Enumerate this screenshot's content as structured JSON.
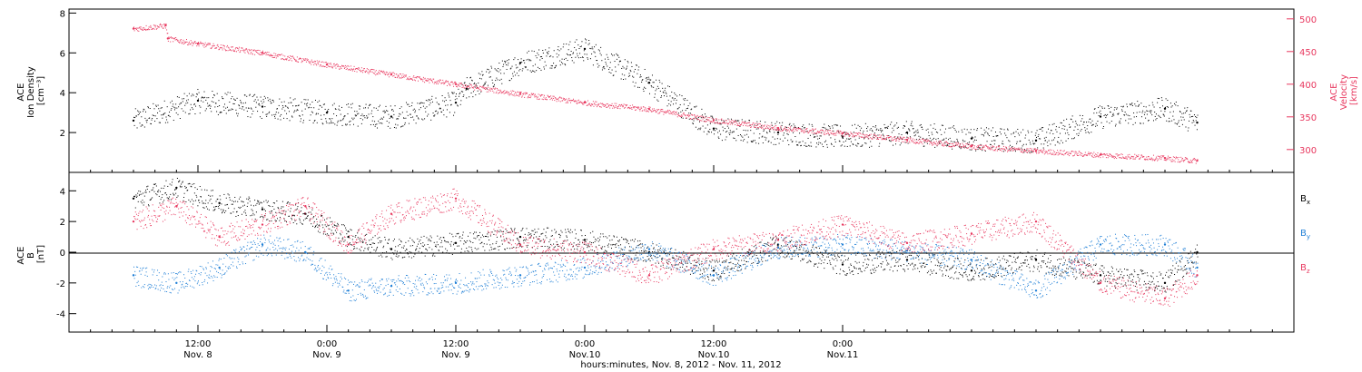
{
  "chart_data": [
    {
      "type": "scatter",
      "panel": "top",
      "ylabel_left": [
        "ACE",
        "Ion Density",
        "[cm⁻³]"
      ],
      "ylabel_right": [
        "ACE",
        "Velocity",
        "[km/s]"
      ],
      "ylim_left": [
        0,
        8.2
      ],
      "ylim_right": [
        265,
        515
      ],
      "left_ticks": [
        "2",
        "4",
        "6",
        "8"
      ],
      "left_tick_values": [
        2,
        4,
        6,
        8
      ],
      "right_ticks": [
        "300",
        "350",
        "400",
        "450",
        "500"
      ],
      "right_tick_values": [
        300,
        350,
        400,
        450,
        500
      ],
      "colors": {
        "density": "#000000",
        "velocity": "#e8385f"
      },
      "series": [
        {
          "name": "Ion Density",
          "axis": "left",
          "x": [
            0,
            6,
            12,
            18,
            24,
            30,
            31,
            36,
            42,
            48,
            54,
            60,
            66,
            72,
            78,
            84,
            90,
            96,
            99
          ],
          "y": [
            2.6,
            3.6,
            3.3,
            3.0,
            2.8,
            3.5,
            4.2,
            5.5,
            6.2,
            4.5,
            2.2,
            2.0,
            1.8,
            2.0,
            1.7,
            1.6,
            2.8,
            3.2,
            2.5
          ]
        },
        {
          "name": "Velocity",
          "axis": "right",
          "x": [
            0,
            3,
            3.2,
            6,
            12,
            18,
            24,
            30,
            36,
            42,
            48,
            54,
            60,
            66,
            72,
            78,
            84,
            90,
            96,
            99
          ],
          "y": [
            485,
            490,
            470,
            462,
            448,
            430,
            415,
            400,
            385,
            372,
            362,
            345,
            333,
            325,
            315,
            305,
            298,
            292,
            287,
            283
          ]
        }
      ]
    },
    {
      "type": "scatter",
      "panel": "bottom",
      "ylabel": [
        "ACE",
        "B",
        "[nT]"
      ],
      "ylim": [
        -5.2,
        5.2
      ],
      "ticks": [
        "4",
        "2",
        "0",
        "-2",
        "-4"
      ],
      "tick_values": [
        4,
        2,
        0,
        -2,
        -4
      ],
      "legend": [
        {
          "name": "B",
          "sub": "x",
          "color": "#000000"
        },
        {
          "name": "B",
          "sub": "y",
          "color": "#1f7fd6"
        },
        {
          "name": "B",
          "sub": "z",
          "color": "#e8385f"
        }
      ],
      "series": [
        {
          "name": "Bx",
          "x": [
            0,
            4,
            8,
            12,
            16,
            20,
            24,
            30,
            36,
            42,
            48,
            54,
            60,
            66,
            72,
            78,
            84,
            90,
            96,
            99
          ],
          "y": [
            3.5,
            4.2,
            3.2,
            2.8,
            2.5,
            1.0,
            0.2,
            0.6,
            1.0,
            0.8,
            0.0,
            -1.2,
            0.5,
            -0.8,
            -0.5,
            -1.2,
            -0.5,
            -1.5,
            -2.0,
            0.0
          ]
        },
        {
          "name": "By",
          "x": [
            0,
            4,
            8,
            12,
            16,
            20,
            24,
            30,
            36,
            42,
            48,
            54,
            60,
            66,
            72,
            78,
            84,
            90,
            96,
            99
          ],
          "y": [
            -1.5,
            -2.0,
            -1.0,
            0.5,
            0.0,
            -2.5,
            -2.2,
            -2.0,
            -1.5,
            -1.0,
            0.2,
            -1.5,
            0.3,
            0.5,
            0.1,
            -0.5,
            -2.5,
            0.5,
            0.5,
            -1.0
          ]
        },
        {
          "name": "Bz",
          "x": [
            0,
            4,
            8,
            12,
            16,
            20,
            24,
            30,
            36,
            42,
            48,
            54,
            60,
            66,
            72,
            78,
            84,
            90,
            96,
            99
          ],
          "y": [
            2.0,
            3.0,
            1.0,
            1.8,
            3.0,
            0.5,
            2.5,
            3.5,
            0.5,
            0.0,
            -1.5,
            0.2,
            0.8,
            1.8,
            0.6,
            1.2,
            2.0,
            -2.0,
            -3.0,
            -1.5
          ]
        }
      ]
    }
  ],
  "x_axis": {
    "start_label_time": "hours:minutes, Nov. 8, 2012 - Nov. 11, 2012",
    "xlim": [
      -6,
      108
    ],
    "major_ticks": [
      {
        "x": 6,
        "time": "12:00",
        "day": "Nov. 8"
      },
      {
        "x": 18,
        "time": "0:00",
        "day": "Nov. 9"
      },
      {
        "x": 30,
        "time": "12:00",
        "day": "Nov. 9"
      },
      {
        "x": 42,
        "time": "0:00",
        "day": "Nov.10"
      },
      {
        "x": 54,
        "time": "12:00",
        "day": "Nov.10"
      },
      {
        "x": 66,
        "time": "0:00",
        "day": "Nov.11"
      }
    ],
    "title": "hours:minutes, Nov.  8, 2012 - Nov. 11, 2012"
  }
}
